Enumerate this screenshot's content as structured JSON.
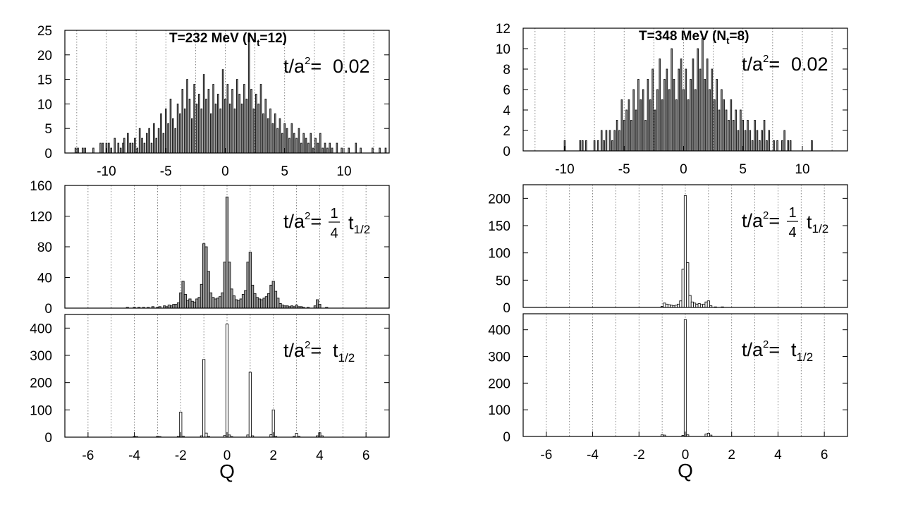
{
  "chart_data": [
    {
      "type": "bar",
      "title": "T=232 MeV (N_t=12)",
      "annotation": "t/a^2= 0.02",
      "xlim": [
        -13.5,
        13.8
      ],
      "ylim": [
        0,
        25
      ],
      "yticks": [
        0,
        5,
        10,
        15,
        20,
        25
      ],
      "xticks": [
        -10,
        -5,
        0,
        5,
        10
      ],
      "xlabel": "",
      "ylabel": "",
      "grid": "vertical-dotted",
      "binwidth": 0.1,
      "bins": [
        [
          -12.6,
          1
        ],
        [
          -12.4,
          1
        ],
        [
          -12.0,
          1
        ],
        [
          -11.8,
          1
        ],
        [
          -11.1,
          1
        ],
        [
          -10.5,
          2
        ],
        [
          -10.3,
          2
        ],
        [
          -10.0,
          2
        ],
        [
          -9.8,
          2
        ],
        [
          -9.6,
          1
        ],
        [
          -9.3,
          3
        ],
        [
          -9.0,
          2
        ],
        [
          -8.8,
          1
        ],
        [
          -8.6,
          2
        ],
        [
          -8.5,
          3
        ],
        [
          -8.2,
          4
        ],
        [
          -8.0,
          2
        ],
        [
          -7.8,
          2
        ],
        [
          -7.6,
          3
        ],
        [
          -7.4,
          1
        ],
        [
          -7.2,
          5
        ],
        [
          -7.0,
          3
        ],
        [
          -6.8,
          2
        ],
        [
          -6.6,
          4
        ],
        [
          -6.4,
          5
        ],
        [
          -6.2,
          2
        ],
        [
          -6.0,
          6
        ],
        [
          -5.8,
          3
        ],
        [
          -5.6,
          5
        ],
        [
          -5.4,
          8
        ],
        [
          -5.2,
          4
        ],
        [
          -5.0,
          9
        ],
        [
          -4.8,
          6
        ],
        [
          -4.6,
          11
        ],
        [
          -4.4,
          7
        ],
        [
          -4.2,
          5
        ],
        [
          -4.0,
          10
        ],
        [
          -3.8,
          8
        ],
        [
          -3.6,
          13
        ],
        [
          -3.4,
          9
        ],
        [
          -3.2,
          15
        ],
        [
          -3.0,
          11
        ],
        [
          -2.8,
          7
        ],
        [
          -2.6,
          14
        ],
        [
          -2.4,
          10
        ],
        [
          -2.2,
          12
        ],
        [
          -2.0,
          9
        ],
        [
          -1.8,
          16
        ],
        [
          -1.6,
          11
        ],
        [
          -1.4,
          13
        ],
        [
          -1.2,
          8
        ],
        [
          -1.0,
          14
        ],
        [
          -0.8,
          10
        ],
        [
          -0.6,
          12
        ],
        [
          -0.4,
          9
        ],
        [
          -0.2,
          17
        ],
        [
          0.0,
          11
        ],
        [
          0.2,
          14
        ],
        [
          0.4,
          10
        ],
        [
          0.6,
          13
        ],
        [
          0.8,
          9
        ],
        [
          1.0,
          15
        ],
        [
          1.2,
          12
        ],
        [
          1.4,
          10
        ],
        [
          1.6,
          14
        ],
        [
          1.8,
          11
        ],
        [
          2.0,
          24
        ],
        [
          2.2,
          13
        ],
        [
          2.4,
          9
        ],
        [
          2.6,
          12
        ],
        [
          2.8,
          10
        ],
        [
          3.0,
          14
        ],
        [
          3.2,
          8
        ],
        [
          3.4,
          11
        ],
        [
          3.6,
          7
        ],
        [
          3.8,
          9
        ],
        [
          4.0,
          6
        ],
        [
          4.2,
          8
        ],
        [
          4.4,
          5
        ],
        [
          4.6,
          7
        ],
        [
          4.8,
          4
        ],
        [
          5.0,
          6
        ],
        [
          5.2,
          5
        ],
        [
          5.4,
          3
        ],
        [
          5.6,
          6
        ],
        [
          5.8,
          4
        ],
        [
          6.0,
          3
        ],
        [
          6.2,
          5
        ],
        [
          6.4,
          2
        ],
        [
          6.6,
          4
        ],
        [
          6.8,
          3
        ],
        [
          7.0,
          2
        ],
        [
          7.2,
          4
        ],
        [
          7.4,
          1
        ],
        [
          7.6,
          3
        ],
        [
          7.8,
          2
        ],
        [
          8.0,
          4
        ],
        [
          8.2,
          1
        ],
        [
          8.4,
          2
        ],
        [
          8.6,
          1
        ],
        [
          8.8,
          2
        ],
        [
          9.0,
          1
        ],
        [
          9.4,
          2
        ],
        [
          9.8,
          1
        ],
        [
          10.4,
          1
        ],
        [
          11.0,
          2
        ],
        [
          11.4,
          1
        ],
        [
          12.4,
          1
        ],
        [
          13.0,
          1
        ],
        [
          13.5,
          1
        ]
      ]
    },
    {
      "type": "bar",
      "annotation": "t/a^2= 1/4 t_1/2",
      "xlim": [
        -7,
        7
      ],
      "ylim": [
        0,
        160
      ],
      "yticks": [
        0,
        40,
        80,
        120,
        160
      ],
      "xticks": [],
      "xlabel": "",
      "ylabel": "",
      "grid": "vertical-dotted",
      "binwidth": 0.1,
      "bins": [
        [
          -4.3,
          1
        ],
        [
          -4.0,
          1
        ],
        [
          -3.8,
          1
        ],
        [
          -3.6,
          1
        ],
        [
          -3.4,
          1
        ],
        [
          -3.2,
          2
        ],
        [
          -3.0,
          1
        ],
        [
          -2.9,
          2
        ],
        [
          -2.7,
          3
        ],
        [
          -2.6,
          2
        ],
        [
          -2.5,
          4
        ],
        [
          -2.4,
          3
        ],
        [
          -2.3,
          5
        ],
        [
          -2.2,
          5
        ],
        [
          -2.1,
          7
        ],
        [
          -2.0,
          20
        ],
        [
          -1.9,
          35
        ],
        [
          -1.8,
          18
        ],
        [
          -1.7,
          10
        ],
        [
          -1.6,
          12
        ],
        [
          -1.5,
          9
        ],
        [
          -1.4,
          8
        ],
        [
          -1.3,
          12
        ],
        [
          -1.2,
          14
        ],
        [
          -1.1,
          31
        ],
        [
          -1.0,
          84
        ],
        [
          -0.9,
          80
        ],
        [
          -0.8,
          48
        ],
        [
          -0.7,
          20
        ],
        [
          -0.6,
          14
        ],
        [
          -0.5,
          12
        ],
        [
          -0.4,
          13
        ],
        [
          -0.3,
          15
        ],
        [
          -0.2,
          20
        ],
        [
          -0.1,
          60
        ],
        [
          0.0,
          145
        ],
        [
          0.1,
          60
        ],
        [
          0.2,
          25
        ],
        [
          0.3,
          16
        ],
        [
          0.4,
          11
        ],
        [
          0.5,
          10
        ],
        [
          0.6,
          12
        ],
        [
          0.7,
          18
        ],
        [
          0.8,
          23
        ],
        [
          0.9,
          60
        ],
        [
          1.0,
          73
        ],
        [
          1.1,
          30
        ],
        [
          1.2,
          19
        ],
        [
          1.3,
          14
        ],
        [
          1.4,
          12
        ],
        [
          1.5,
          11
        ],
        [
          1.6,
          13
        ],
        [
          1.7,
          15
        ],
        [
          1.8,
          19
        ],
        [
          1.9,
          30
        ],
        [
          2.0,
          35
        ],
        [
          2.1,
          22
        ],
        [
          2.2,
          13
        ],
        [
          2.3,
          6
        ],
        [
          2.4,
          4
        ],
        [
          2.5,
          3
        ],
        [
          2.6,
          3
        ],
        [
          2.7,
          2
        ],
        [
          2.8,
          3
        ],
        [
          2.9,
          2
        ],
        [
          3.0,
          4
        ],
        [
          3.1,
          2
        ],
        [
          3.2,
          2
        ],
        [
          3.3,
          1
        ],
        [
          3.5,
          1
        ],
        [
          3.8,
          3
        ],
        [
          3.9,
          11
        ],
        [
          4.0,
          5
        ],
        [
          4.3,
          1
        ]
      ]
    },
    {
      "type": "bar",
      "annotation": "t/a^2= t_1/2",
      "xlim": [
        -7,
        7
      ],
      "ylim": [
        0,
        450
      ],
      "yticks": [
        0,
        100,
        200,
        300,
        400
      ],
      "xticks": [
        -6,
        -4,
        -2,
        0,
        2,
        4,
        6
      ],
      "xlabel": "Q",
      "ylabel": "",
      "grid": "vertical-dotted",
      "binwidth": 0.1,
      "bins": [
        [
          -4.0,
          3
        ],
        [
          -3.9,
          2
        ],
        [
          -3.0,
          3
        ],
        [
          -2.9,
          2
        ],
        [
          -2.1,
          3
        ],
        [
          -2.0,
          92
        ],
        [
          -1.9,
          4
        ],
        [
          -1.1,
          5
        ],
        [
          -1.0,
          285
        ],
        [
          -0.9,
          15
        ],
        [
          -0.8,
          3
        ],
        [
          -0.1,
          6
        ],
        [
          0.0,
          415
        ],
        [
          0.1,
          8
        ],
        [
          0.2,
          2
        ],
        [
          0.9,
          8
        ],
        [
          1.0,
          238
        ],
        [
          1.1,
          5
        ],
        [
          1.9,
          9
        ],
        [
          2.0,
          100
        ],
        [
          2.1,
          3
        ],
        [
          2.9,
          3
        ],
        [
          3.0,
          14
        ],
        [
          3.1,
          3
        ],
        [
          3.9,
          5
        ],
        [
          4.0,
          16
        ],
        [
          4.1,
          5
        ]
      ]
    },
    {
      "type": "bar",
      "title": "T=348 MeV (N_t=8)",
      "annotation": "t/a^2= 0.02",
      "xlim": [
        -13.5,
        13.8
      ],
      "ylim": [
        0,
        12
      ],
      "yticks": [
        0,
        2,
        4,
        6,
        8,
        10,
        12
      ],
      "xticks": [
        -10,
        -5,
        0,
        5,
        10
      ],
      "xlabel": "",
      "ylabel": "",
      "grid": "vertical-dotted",
      "binwidth": 0.1,
      "bins": [
        [
          -10.0,
          1
        ],
        [
          -8.7,
          1
        ],
        [
          -8.5,
          1
        ],
        [
          -8.2,
          1
        ],
        [
          -7.5,
          1
        ],
        [
          -7.2,
          1
        ],
        [
          -6.9,
          2
        ],
        [
          -6.7,
          1
        ],
        [
          -6.5,
          2
        ],
        [
          -6.2,
          2
        ],
        [
          -6.0,
          1
        ],
        [
          -5.8,
          2
        ],
        [
          -5.6,
          3
        ],
        [
          -5.4,
          2
        ],
        [
          -5.2,
          5
        ],
        [
          -5.0,
          3
        ],
        [
          -4.8,
          4
        ],
        [
          -4.6,
          5
        ],
        [
          -4.4,
          3
        ],
        [
          -4.2,
          6
        ],
        [
          -4.0,
          4
        ],
        [
          -3.8,
          7
        ],
        [
          -3.6,
          5
        ],
        [
          -3.4,
          6
        ],
        [
          -3.2,
          3
        ],
        [
          -3.0,
          7
        ],
        [
          -2.8,
          5
        ],
        [
          -2.6,
          8
        ],
        [
          -2.4,
          4
        ],
        [
          -2.2,
          6
        ],
        [
          -2.0,
          9
        ],
        [
          -1.8,
          5
        ],
        [
          -1.6,
          7
        ],
        [
          -1.4,
          8
        ],
        [
          -1.2,
          6
        ],
        [
          -1.0,
          10
        ],
        [
          -0.8,
          7
        ],
        [
          -0.6,
          5
        ],
        [
          -0.4,
          8
        ],
        [
          -0.2,
          9
        ],
        [
          0.0,
          6
        ],
        [
          0.2,
          8
        ],
        [
          0.4,
          5
        ],
        [
          0.6,
          7
        ],
        [
          0.8,
          9
        ],
        [
          1.0,
          6
        ],
        [
          1.2,
          10
        ],
        [
          1.4,
          8
        ],
        [
          1.6,
          11
        ],
        [
          1.8,
          7
        ],
        [
          2.0,
          9
        ],
        [
          2.2,
          6
        ],
        [
          2.4,
          8
        ],
        [
          2.6,
          5
        ],
        [
          2.8,
          7
        ],
        [
          3.0,
          4
        ],
        [
          3.2,
          6
        ],
        [
          3.4,
          5
        ],
        [
          3.6,
          4
        ],
        [
          3.8,
          3
        ],
        [
          4.0,
          5
        ],
        [
          4.2,
          3
        ],
        [
          4.4,
          4
        ],
        [
          4.6,
          2
        ],
        [
          4.8,
          4
        ],
        [
          5.0,
          3
        ],
        [
          5.2,
          2
        ],
        [
          5.4,
          3
        ],
        [
          5.6,
          2
        ],
        [
          5.8,
          1
        ],
        [
          6.0,
          3
        ],
        [
          6.2,
          2
        ],
        [
          6.4,
          1
        ],
        [
          6.6,
          2
        ],
        [
          6.8,
          3
        ],
        [
          7.0,
          1
        ],
        [
          7.2,
          2
        ],
        [
          7.6,
          1
        ],
        [
          7.9,
          1
        ],
        [
          8.3,
          1
        ],
        [
          8.5,
          2
        ],
        [
          8.8,
          1
        ],
        [
          9.0,
          1
        ],
        [
          10.8,
          1
        ]
      ]
    },
    {
      "type": "bar",
      "annotation": "t/a^2= 1/4 t_1/2",
      "xlim": [
        -7,
        7
      ],
      "ylim": [
        0,
        225
      ],
      "yticks": [
        0,
        50,
        100,
        150,
        200
      ],
      "xticks": [],
      "xlabel": "",
      "ylabel": "",
      "grid": "vertical-dotted",
      "binwidth": 0.1,
      "bins": [
        [
          -1.0,
          2
        ],
        [
          -0.9,
          8
        ],
        [
          -0.8,
          6
        ],
        [
          -0.7,
          5
        ],
        [
          -0.6,
          4
        ],
        [
          -0.5,
          3
        ],
        [
          -0.4,
          4
        ],
        [
          -0.3,
          6
        ],
        [
          -0.2,
          12
        ],
        [
          -0.1,
          70
        ],
        [
          0.0,
          205
        ],
        [
          0.1,
          82
        ],
        [
          0.2,
          22
        ],
        [
          0.3,
          10
        ],
        [
          0.4,
          8
        ],
        [
          0.5,
          6
        ],
        [
          0.6,
          7
        ],
        [
          0.7,
          5
        ],
        [
          0.8,
          6
        ],
        [
          0.9,
          10
        ],
        [
          1.0,
          12
        ],
        [
          1.1,
          3
        ],
        [
          1.3,
          1
        ],
        [
          1.6,
          1
        ]
      ]
    },
    {
      "type": "bar",
      "annotation": "t/a^2= t_1/2",
      "xlim": [
        -7,
        7
      ],
      "ylim": [
        0,
        460
      ],
      "yticks": [
        0,
        100,
        200,
        300,
        400
      ],
      "xticks": [
        -6,
        -4,
        -2,
        0,
        2,
        4,
        6
      ],
      "xlabel": "Q",
      "ylabel": "",
      "grid": "vertical-dotted",
      "binwidth": 0.1,
      "bins": [
        [
          -1.0,
          6
        ],
        [
          -0.9,
          5
        ],
        [
          -0.1,
          4
        ],
        [
          0.0,
          438
        ],
        [
          0.1,
          6
        ],
        [
          0.9,
          9
        ],
        [
          1.0,
          12
        ],
        [
          1.1,
          5
        ]
      ]
    }
  ]
}
